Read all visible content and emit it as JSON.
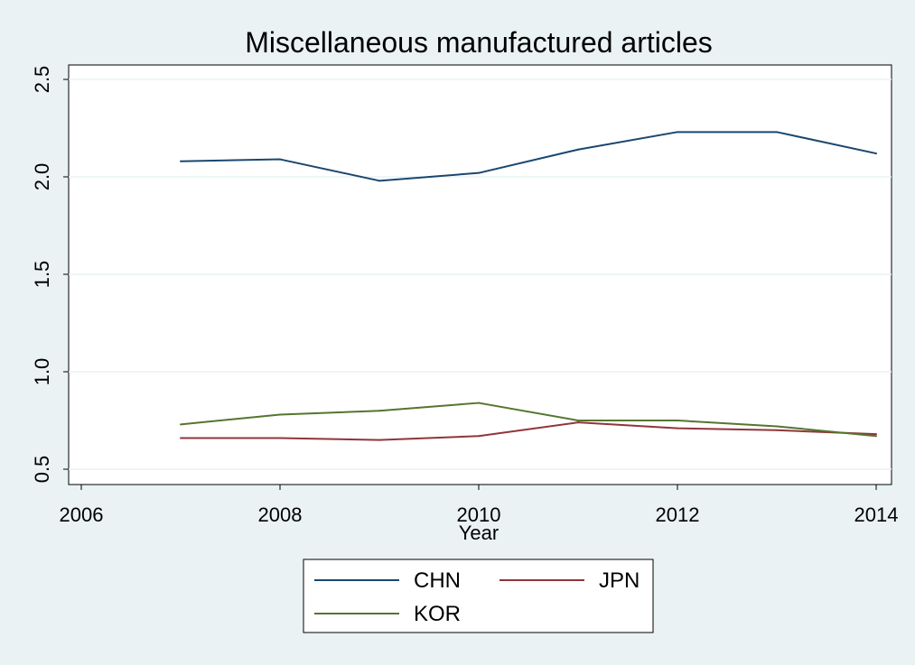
{
  "chart_data": {
    "type": "line",
    "title": "Miscellaneous manufactured articles",
    "xlabel": "Year",
    "ylabel": "",
    "xlim": [
      2006,
      2014
    ],
    "ylim": [
      0.5,
      2.5
    ],
    "x_ticks": [
      "2006",
      "2008",
      "2010",
      "2012",
      "2014"
    ],
    "y_ticks": [
      "0.5",
      "1.0",
      "1.5",
      "2.0",
      "2.5"
    ],
    "grid": true,
    "legend_position": "bottom",
    "x": [
      2007,
      2008,
      2009,
      2010,
      2011,
      2012,
      2013,
      2014
    ],
    "series": [
      {
        "name": "CHN",
        "color": "#1a476f",
        "values": [
          2.08,
          2.09,
          1.98,
          2.02,
          2.14,
          2.23,
          2.23,
          2.12
        ]
      },
      {
        "name": "JPN",
        "color": "#90353b",
        "values": [
          0.66,
          0.66,
          0.65,
          0.67,
          0.74,
          0.71,
          0.7,
          0.68
        ]
      },
      {
        "name": "KOR",
        "color": "#55752f",
        "values": [
          0.73,
          0.78,
          0.8,
          0.84,
          0.75,
          0.75,
          0.72,
          0.67
        ]
      }
    ]
  }
}
